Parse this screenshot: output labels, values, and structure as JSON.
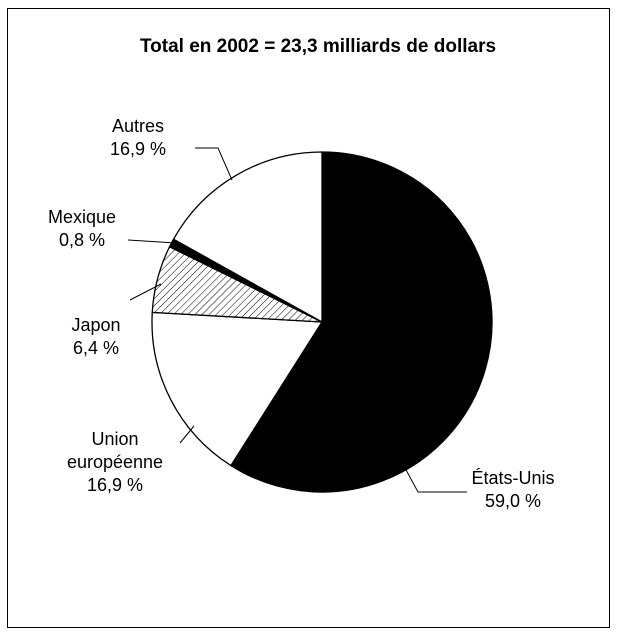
{
  "chart_data": {
    "type": "pie",
    "title": "Total en 2002 = 23,3 milliards de dollars",
    "slices": [
      {
        "label": "États-Unis",
        "value": 59.0,
        "display": "59,0 %",
        "fill": "#000000"
      },
      {
        "label": "Union européenne",
        "label_lines": [
          "Union",
          "européenne"
        ],
        "value": 16.9,
        "display": "16,9 %",
        "fill": "#ffffff"
      },
      {
        "label": "Japon",
        "value": 6.4,
        "display": "6,4 %",
        "fill": "hatch"
      },
      {
        "label": "Mexique",
        "value": 0.8,
        "display": "0,8 %",
        "fill": "#000000"
      },
      {
        "label": "Autres",
        "value": 16.9,
        "display": "16,9 %",
        "fill": "#ffffff"
      }
    ],
    "start": "12 o'clock",
    "direction": "clockwise"
  }
}
